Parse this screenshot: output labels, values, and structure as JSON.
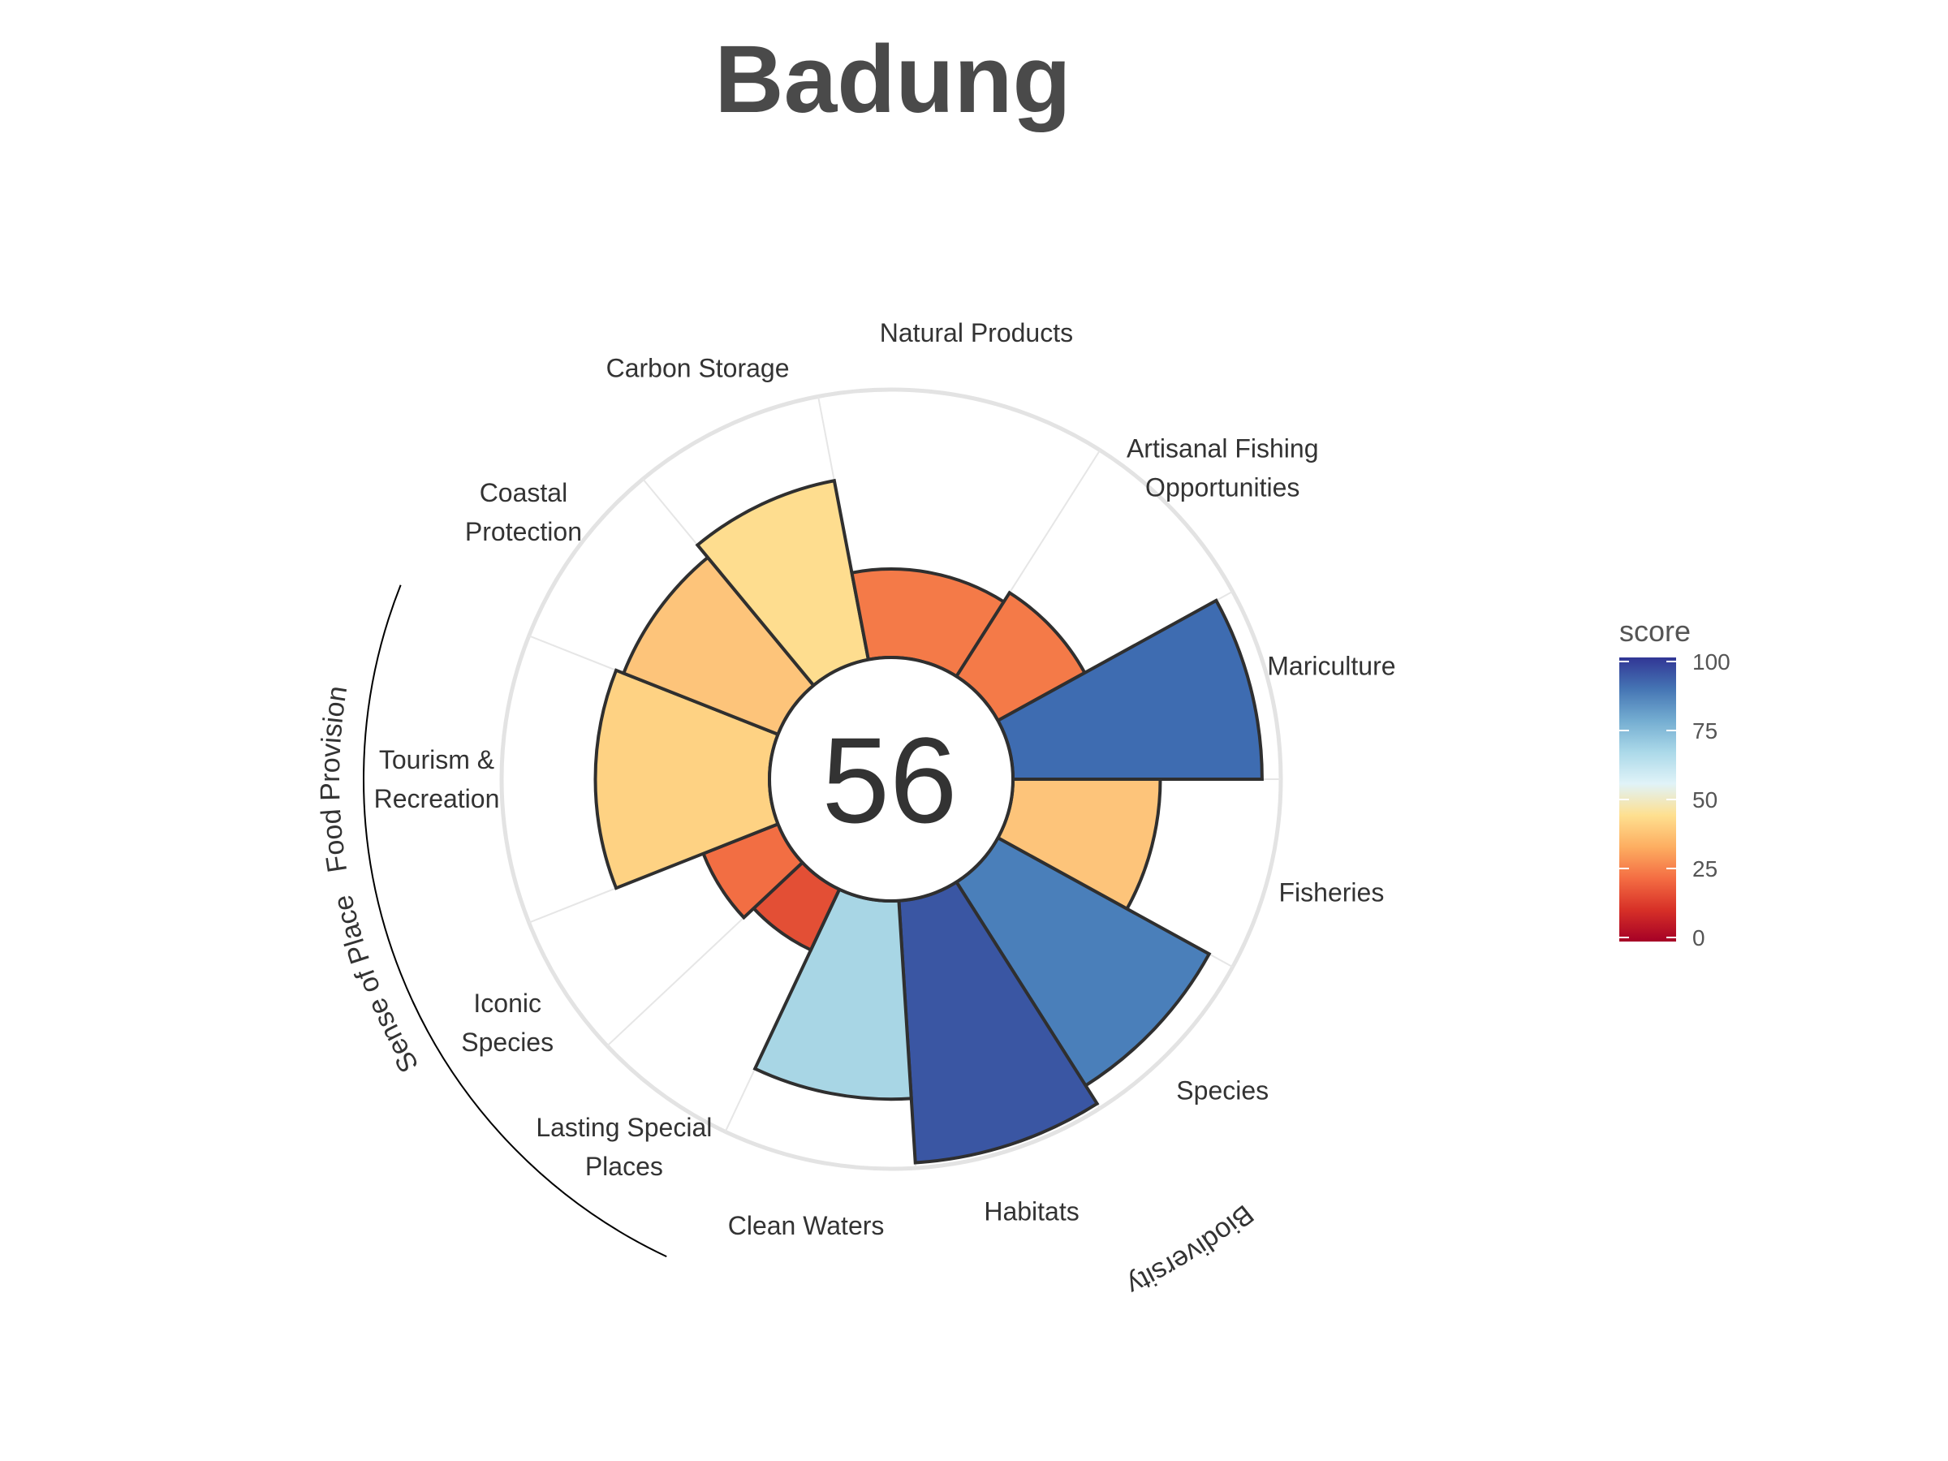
{
  "chart_data": {
    "type": "flower",
    "title": "Badung",
    "center_score": "56",
    "rlim": [
      0,
      100
    ],
    "goals": [
      {
        "name": "Fisheries",
        "lines": [
          "Fisheries"
        ],
        "value": 55,
        "weight": 1,
        "color": "#FDC47A"
      },
      {
        "name": "Species",
        "lines": [
          "Species"
        ],
        "value": 90,
        "weight": 1,
        "color": "#4A7FBA"
      },
      {
        "name": "Habitats",
        "lines": [
          "Habitats"
        ],
        "value": 98,
        "weight": 1,
        "color": "#3A56A3"
      },
      {
        "name": "Clean Waters",
        "lines": [
          "Clean Waters"
        ],
        "value": 74,
        "weight": 1,
        "color": "#A8D6E5"
      },
      {
        "name": "Lasting Special Places",
        "lines": [
          "Lasting Special",
          "Places"
        ],
        "value": 25,
        "weight": 0.75,
        "color": "#E34F35"
      },
      {
        "name": "Iconic Species",
        "lines": [
          "Iconic",
          "Species"
        ],
        "value": 30,
        "weight": 0.75,
        "color": "#F26E43"
      },
      {
        "name": "Tourism & Recreation",
        "lines": [
          "Tourism &",
          "Recreation"
        ],
        "value": 65,
        "weight": 1.5,
        "color": "#FED283"
      },
      {
        "name": "Coastal Protection",
        "lines": [
          "Coastal",
          "Protection"
        ],
        "value": 62,
        "weight": 1,
        "color": "#FDC47A"
      },
      {
        "name": "Carbon Storage",
        "lines": [
          "Carbon Storage"
        ],
        "value": 68,
        "weight": 1,
        "color": "#FEDD8F"
      },
      {
        "name": "Natural Products",
        "lines": [
          "Natural Products"
        ],
        "value": 33,
        "weight": 1.5,
        "color": "#F47A48"
      },
      {
        "name": "Artisanal Fishing Opportunities",
        "lines": [
          "Artisanal Fishing",
          "Opportunities"
        ],
        "value": 37,
        "weight": 1,
        "color": "#F47A48"
      },
      {
        "name": "Mariculture",
        "lines": [
          "Mariculture"
        ],
        "value": 93,
        "weight": 1,
        "color": "#3E6CB1"
      }
    ],
    "groups": [
      {
        "name": "Food Provision",
        "goals": [
          "Fisheries",
          "Mariculture"
        ]
      },
      {
        "name": "Biodiversity",
        "goals": [
          "Species",
          "Habitats"
        ]
      },
      {
        "name": "Sense of Place",
        "goals": [
          "Lasting Special Places",
          "Iconic Species",
          "Tourism & Recreation"
        ]
      }
    ],
    "legend": {
      "title": "score",
      "ticks": [
        "0",
        "25",
        "50",
        "75",
        "100"
      ],
      "tick_values": [
        0,
        25,
        50,
        75,
        100
      ],
      "colors": [
        "#A50026",
        "#D73027",
        "#F46D43",
        "#FDAE61",
        "#FEE090",
        "#E0F3F8",
        "#ABD9E9",
        "#74ADD1",
        "#4575B4",
        "#313695"
      ],
      "placement": "right"
    }
  }
}
